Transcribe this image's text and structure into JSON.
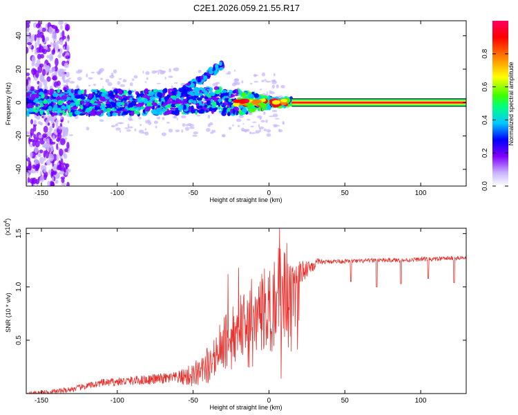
{
  "figure_title": "C2E1.2026.059.21.55.R17",
  "colors": {
    "snr_line": "#e8302c",
    "tone_line": "#ff1b1b",
    "axis": "#000000"
  },
  "chart_data": [
    {
      "type": "heatmap",
      "title": "C2E1.2026.059.21.55.R17",
      "xlabel": "Height of straight line (km)",
      "ylabel": "Frequency (Hz)",
      "xlim": [
        -160,
        130
      ],
      "ylim": [
        -50,
        49
      ],
      "x_ticks": [
        -150,
        -100,
        -50,
        0,
        50,
        100
      ],
      "x_tick_labels": [
        "-150",
        "-100",
        "-50",
        "0",
        "50",
        "100"
      ],
      "y_ticks": [
        -40,
        -20,
        0,
        20,
        40
      ],
      "y_tick_labels": [
        "-40",
        "-20",
        "0",
        "20",
        "40"
      ],
      "colorbar": {
        "label": "Normalized spectral amplitude",
        "range": [
          0.0,
          1.0
        ],
        "ticks": [
          0.0,
          0.2,
          0.4,
          0.6,
          0.8
        ],
        "tick_labels": [
          "0.0",
          "0.2",
          "0.4",
          "0.6",
          "0.8"
        ],
        "colormap": [
          "#ffffff",
          "#c8b4ff",
          "#8000ff",
          "#0000ff",
          "#00c8ff",
          "#00ff80",
          "#40ff00",
          "#ffff00",
          "#ff8000",
          "#ff0000",
          "#ff0060"
        ]
      },
      "description_series": [
        {
          "name": "carrier tone",
          "x_range": [
            15,
            130
          ],
          "frequency_hz": 0,
          "amplitude": 1.0
        },
        {
          "name": "multipath band",
          "x_range": [
            -160,
            15
          ],
          "frequency_hz": 0,
          "amplitude_approx": 0.4
        }
      ]
    },
    {
      "type": "line",
      "xlabel": "Height of straight line (km)",
      "ylabel": "SNR (10 * v/v)",
      "y_scale_label": "(x10",
      "y_scale_exp": "4",
      "xlim": [
        -160,
        130
      ],
      "ylim": [
        0,
        1.55
      ],
      "x_ticks": [
        -150,
        -100,
        -50,
        0,
        50,
        100
      ],
      "x_tick_labels": [
        "-150",
        "-100",
        "-50",
        "0",
        "50",
        "100"
      ],
      "y_ticks": [
        0.5,
        1.0,
        1.5
      ],
      "y_tick_labels": [
        "0.5",
        "1.0",
        "1.5"
      ],
      "series": [
        {
          "name": "SNR",
          "x": [
            -160,
            -150,
            -140,
            -130,
            -120,
            -110,
            -100,
            -90,
            -80,
            -70,
            -60,
            -50,
            -45,
            -40,
            -35,
            -30,
            -25,
            -20,
            -15,
            -10,
            -5,
            0,
            5,
            10,
            15,
            20,
            25,
            30,
            35,
            40,
            50,
            60,
            70,
            80,
            90,
            100,
            110,
            120,
            130
          ],
          "y": [
            0.0,
            0.01,
            0.02,
            0.04,
            0.07,
            0.1,
            0.11,
            0.12,
            0.13,
            0.14,
            0.15,
            0.17,
            0.2,
            0.28,
            0.4,
            0.52,
            0.6,
            0.65,
            0.7,
            0.74,
            0.8,
            0.85,
            0.9,
            0.96,
            1.05,
            1.12,
            1.18,
            1.21,
            1.23,
            1.24,
            1.24,
            1.24,
            1.25,
            1.25,
            1.25,
            1.26,
            1.26,
            1.27,
            1.27
          ],
          "spikes": [
            {
              "x": 7,
              "y": 1.55
            },
            {
              "x": 8,
              "y": 0.14
            },
            {
              "x": -20,
              "y": 1.18
            },
            {
              "x": -27,
              "y": 1.12
            }
          ],
          "dips": [
            {
              "x": 54,
              "y": 1.05
            },
            {
              "x": 71,
              "y": 1.0
            },
            {
              "x": 87,
              "y": 1.03
            },
            {
              "x": 105,
              "y": 1.08
            },
            {
              "x": 122,
              "y": 1.04
            }
          ]
        }
      ]
    }
  ]
}
